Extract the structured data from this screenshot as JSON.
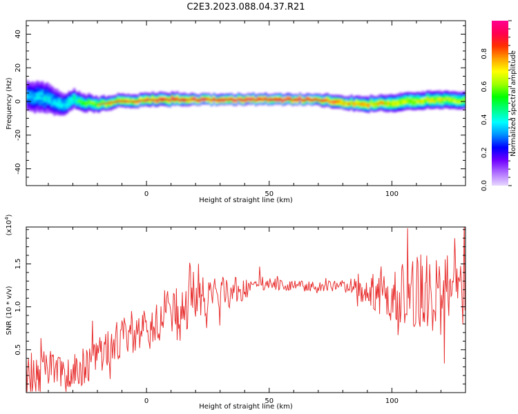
{
  "figure": {
    "title": "C2E3.2023.088.04.37.R21"
  },
  "chart_data": [
    {
      "type": "heatmap",
      "xlabel": "Height of straight line (km)",
      "ylabel": "Frequency (Hz)",
      "xlim": [
        -49,
        130
      ],
      "ylim": [
        -50,
        48
      ],
      "xticks": [
        0,
        50,
        100
      ],
      "xtick_labels": [
        "0",
        "50",
        "100"
      ],
      "yticks": [
        -40,
        -20,
        0,
        20,
        40
      ],
      "ytick_labels": [
        "-40",
        "-20",
        "0",
        "20",
        "40"
      ],
      "colorbar": {
        "label": "Normalized spectral amplitude",
        "range": [
          0,
          1
        ],
        "ticks": [
          0.0,
          0.2,
          0.4,
          0.6,
          0.8
        ],
        "tick_labels": [
          "0.0",
          "0.2",
          "0.4",
          "0.6",
          "0.8"
        ],
        "colors": [
          "#e8d8ff",
          "#b070ff",
          "#7000ff",
          "#0000ff",
          "#0090ff",
          "#00ffff",
          "#00ff80",
          "#00ff00",
          "#a0ff00",
          "#ffff00",
          "#ffa000",
          "#ff3000",
          "#ff0050",
          "#ff0090"
        ]
      },
      "ridge": {
        "x": [
          -49,
          -42,
          -38,
          -34,
          -30,
          -25,
          -20,
          -12,
          -5,
          0,
          10,
          20,
          30,
          40,
          50,
          60,
          68,
          75,
          80,
          90,
          95,
          100,
          105,
          110,
          115,
          120,
          125,
          130
        ],
        "y": [
          3,
          2,
          0,
          -2,
          1,
          -1,
          -2,
          0,
          0,
          1,
          1,
          1,
          1,
          1,
          1,
          1,
          1,
          0,
          -1,
          -2,
          -1,
          -1,
          0,
          0,
          1,
          1,
          1,
          0
        ],
        "amp": [
          0.35,
          0.4,
          0.38,
          0.42,
          0.5,
          0.6,
          0.65,
          0.78,
          0.85,
          0.9,
          0.95,
          1.0,
          1.0,
          1.0,
          1.0,
          1.0,
          0.95,
          0.9,
          0.85,
          0.8,
          0.75,
          0.7,
          0.7,
          0.72,
          0.72,
          0.7,
          0.68,
          0.65
        ],
        "spread": [
          7,
          7,
          6,
          5,
          4,
          3.5,
          3,
          2.5,
          2.5,
          2.5,
          2.5,
          2,
          2,
          2,
          2,
          2,
          2,
          2.5,
          2.5,
          3,
          3,
          3.5,
          3.5,
          3.5,
          3.5,
          3.5,
          3.5,
          3.5
        ]
      }
    },
    {
      "type": "line",
      "xlabel": "Height of straight line (km)",
      "ylabel": "SNR (10 * v/v)",
      "y_multiplier": "(x10",
      "y_multiplier_exp": "4",
      "y_multiplier_close": ")",
      "xlim": [
        -49,
        130
      ],
      "ylim": [
        0,
        1.93
      ],
      "xticks": [
        0,
        50,
        100
      ],
      "xtick_labels": [
        "0",
        "50",
        "100"
      ],
      "yticks": [
        0.5,
        1.0,
        1.5
      ],
      "ytick_labels": [
        "0.5",
        "1.0",
        "1.5"
      ],
      "line_color": "#e83030",
      "trend": {
        "x": [
          -49,
          -40,
          -30,
          -22,
          -15,
          -10,
          -5,
          0,
          5,
          10,
          15,
          20,
          25,
          30,
          35,
          40,
          45,
          50,
          55,
          60,
          65,
          70,
          75,
          80,
          85,
          90,
          95,
          100,
          105,
          110,
          115,
          120,
          125,
          130
        ],
        "mean": [
          0.22,
          0.25,
          0.27,
          0.35,
          0.55,
          0.65,
          0.72,
          0.8,
          0.88,
          0.95,
          1.0,
          1.05,
          1.12,
          1.15,
          1.18,
          1.2,
          1.24,
          1.27,
          1.25,
          1.24,
          1.24,
          1.24,
          1.24,
          1.24,
          1.22,
          1.2,
          1.18,
          1.16,
          1.15,
          1.15,
          1.15,
          1.15,
          1.12,
          1.1
        ],
        "noise": [
          0.15,
          0.15,
          0.14,
          0.14,
          0.14,
          0.15,
          0.16,
          0.16,
          0.17,
          0.18,
          0.18,
          0.17,
          0.15,
          0.13,
          0.11,
          0.09,
          0.07,
          0.05,
          0.04,
          0.04,
          0.04,
          0.04,
          0.04,
          0.05,
          0.07,
          0.12,
          0.18,
          0.22,
          0.25,
          0.28,
          0.3,
          0.3,
          0.3,
          0.28
        ]
      }
    }
  ]
}
